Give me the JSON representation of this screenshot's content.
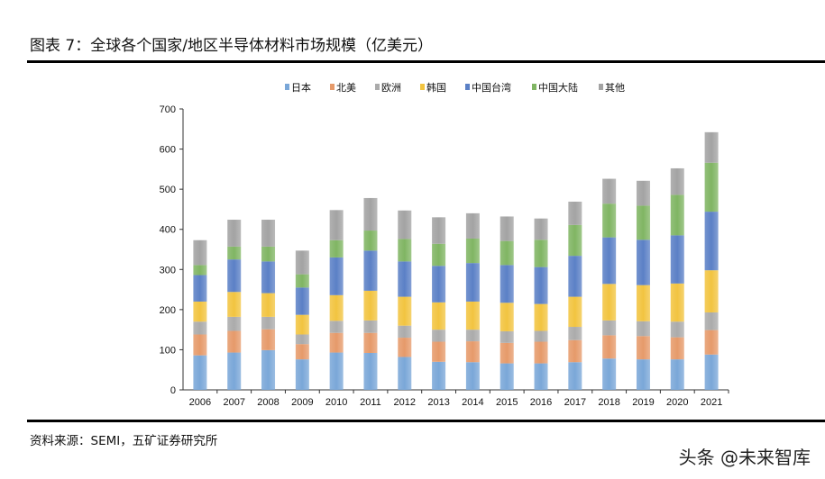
{
  "title": "图表 7：全球各个国家/地区半导体材料市场规模（亿美元）",
  "source": "资料来源：SEMI，五矿证券研究所",
  "watermark": "头条 @未来智库",
  "chart_data": {
    "type": "bar",
    "stacked": true,
    "title": "",
    "xlabel": "",
    "ylabel": "",
    "ylim": [
      0,
      700
    ],
    "yticks": [
      0,
      100,
      200,
      300,
      400,
      500,
      600,
      700
    ],
    "grid": false,
    "legend_position": "top",
    "categories": [
      "2006",
      "2007",
      "2008",
      "2009",
      "2010",
      "2011",
      "2012",
      "2013",
      "2014",
      "2015",
      "2016",
      "2017",
      "2018",
      "2019",
      "2020",
      "2021"
    ],
    "series": [
      {
        "name": "日本",
        "color": "#7aa7d8",
        "values": [
          86,
          93,
          99,
          76,
          93,
          92,
          82,
          70,
          69,
          66,
          66,
          69,
          78,
          76,
          76,
          88
        ]
      },
      {
        "name": "北美",
        "color": "#e69a6a",
        "values": [
          52,
          54,
          52,
          38,
          49,
          50,
          48,
          50,
          52,
          51,
          54,
          55,
          58,
          58,
          55,
          61
        ]
      },
      {
        "name": "欧洲",
        "color": "#ababab",
        "values": [
          32,
          35,
          31,
          24,
          30,
          31,
          30,
          30,
          29,
          29,
          27,
          33,
          37,
          37,
          39,
          44
        ]
      },
      {
        "name": "韩国",
        "color": "#f2c440",
        "values": [
          50,
          62,
          59,
          49,
          64,
          74,
          72,
          68,
          70,
          71,
          67,
          75,
          91,
          90,
          95,
          105
        ]
      },
      {
        "name": "中国台湾",
        "color": "#5b80c6",
        "values": [
          66,
          81,
          79,
          68,
          94,
          100,
          88,
          91,
          96,
          94,
          92,
          102,
          116,
          113,
          120,
          146
        ]
      },
      {
        "name": "中国大陆",
        "color": "#80b563",
        "values": [
          25,
          32,
          37,
          33,
          43,
          50,
          56,
          55,
          61,
          60,
          68,
          77,
          84,
          85,
          101,
          122
        ]
      },
      {
        "name": "其他",
        "color": "#a3a3a3",
        "values": [
          62,
          67,
          67,
          59,
          75,
          81,
          71,
          66,
          63,
          61,
          53,
          58,
          62,
          62,
          66,
          76
        ]
      }
    ]
  }
}
